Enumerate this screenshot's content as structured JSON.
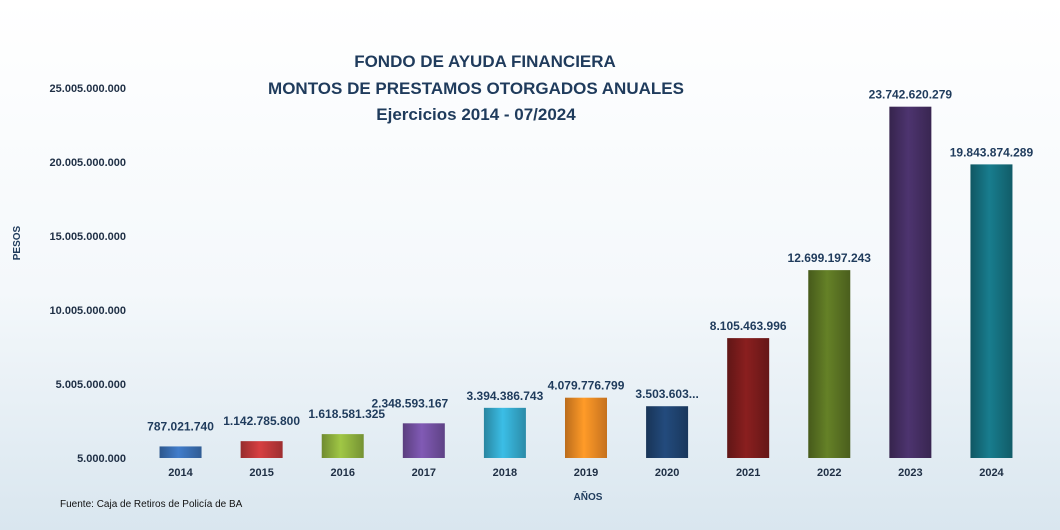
{
  "chart_data": {
    "type": "bar",
    "title_lines": [
      "FONDO DE AYUDA FINANCIERA",
      "MONTOS DE PRESTAMOS OTORGADOS ANUALES",
      "Ejercicios 2014 - 07/2024"
    ],
    "xlabel": "AÑOS",
    "ylabel": "PESOS",
    "categories": [
      "2014",
      "2015",
      "2016",
      "2017",
      "2018",
      "2019",
      "2020",
      "2021",
      "2022",
      "2023",
      "2024"
    ],
    "values": [
      787021740,
      1142785800,
      1618581325,
      2348593167,
      3394386743,
      4079776799,
      3503603000,
      8105463996,
      12699197243,
      23742620279,
      19843874289
    ],
    "data_labels": [
      "787.021.740",
      "1.142.785.800",
      "1.618.581.325",
      "2.348.593.167",
      "3.394.386.743",
      "4.079.776.799",
      "3.503.603...",
      "8.105.463.996",
      "12.699.197.243",
      "23.742.620.279",
      "19.843.874.289"
    ],
    "ylim": [
      5000000,
      25005000000
    ],
    "yticks": [
      5000000,
      5005000000,
      10005000000,
      15005000000,
      20005000000,
      25005000000
    ],
    "ytick_labels": [
      "5.000.000",
      "5.005.000.000",
      "10.005.000.000",
      "15.005.000.000",
      "20.005.000.000",
      "25.005.000.000"
    ],
    "grid": false,
    "legend": "none",
    "colors": [
      "#3a70b5",
      "#c0383a",
      "#8fb23e",
      "#7350a2",
      "#35aacd",
      "#f08a24",
      "#1f4370",
      "#7b1c1c",
      "#5a7323",
      "#452e63",
      "#15707f"
    ],
    "source": "Fuente: Caja de Retiros de Policía de BA"
  }
}
